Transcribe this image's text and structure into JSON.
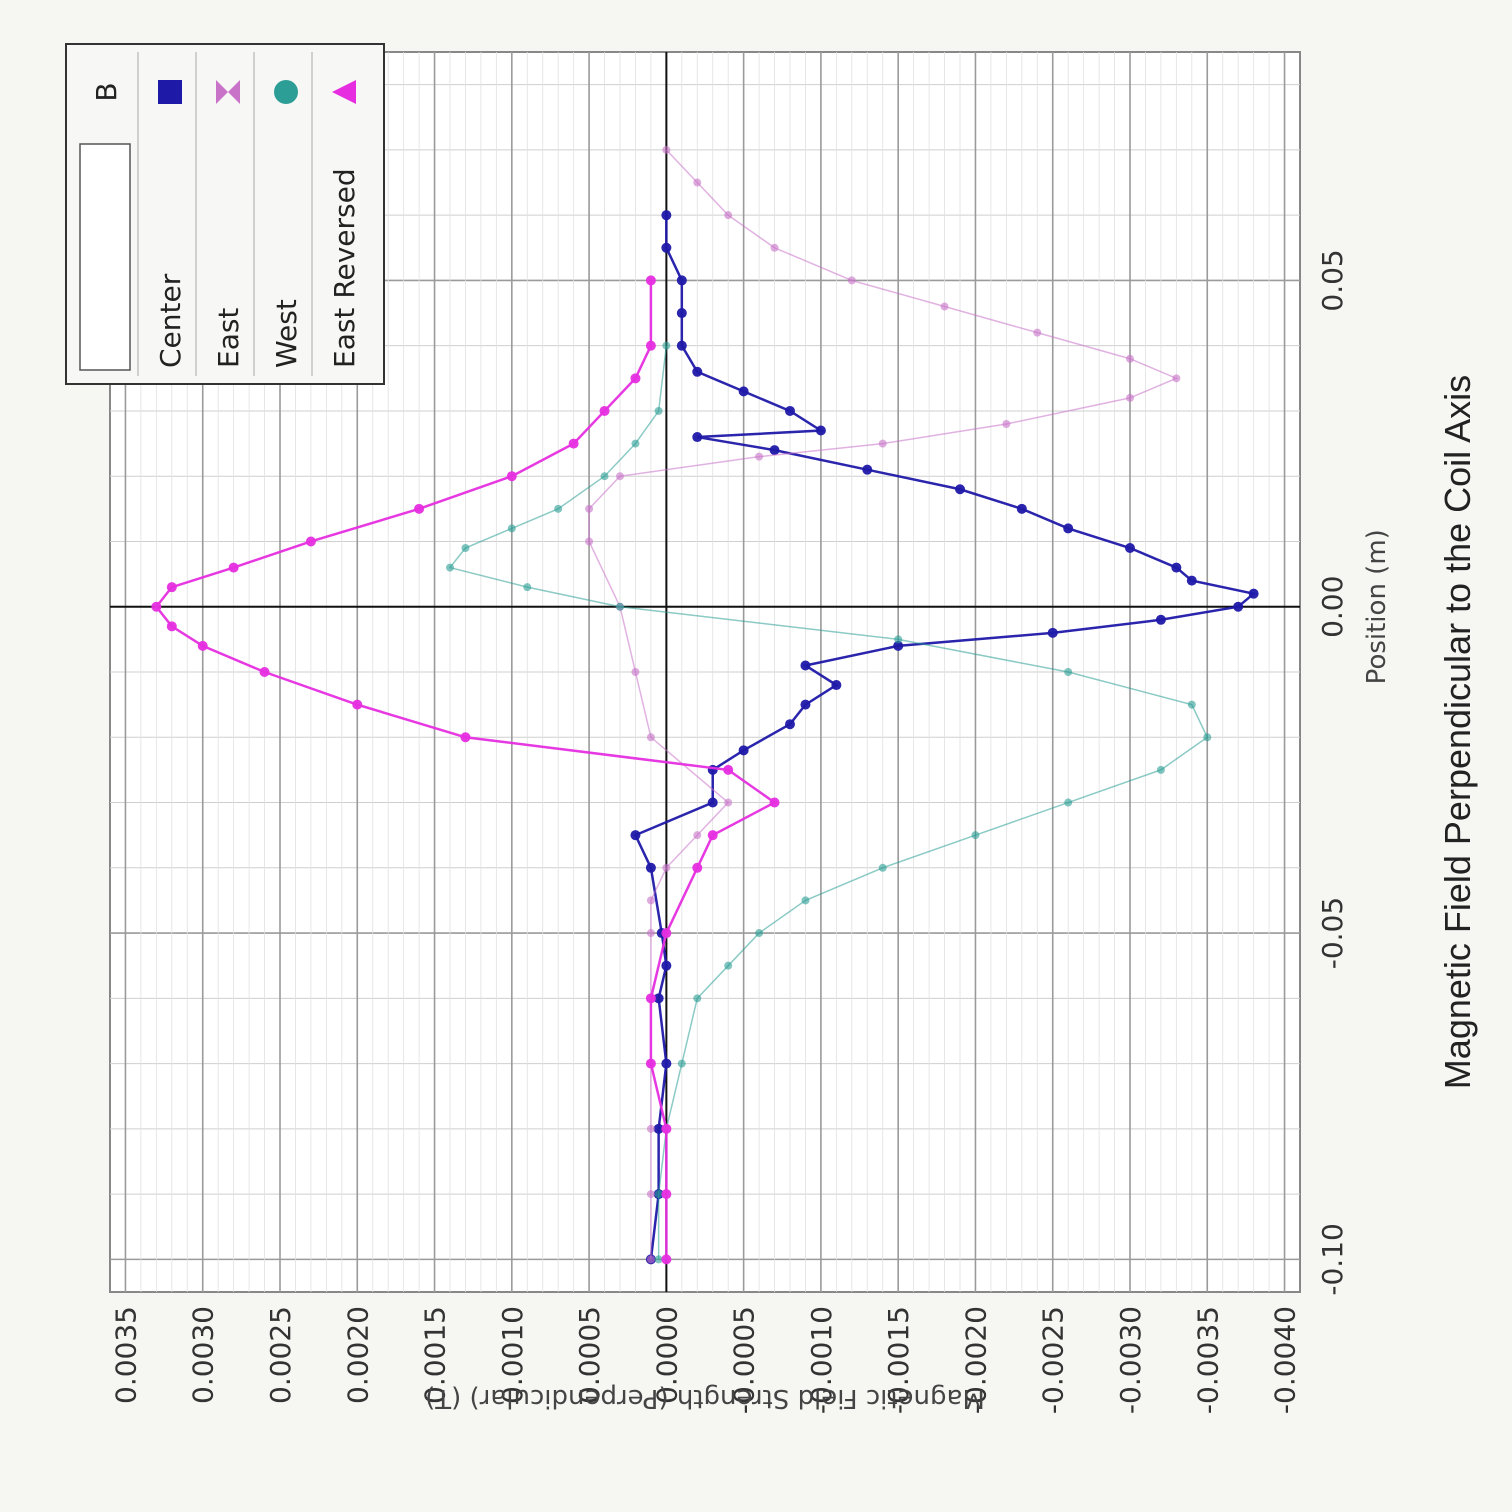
{
  "toolbar": {
    "icons": [
      "table-icon",
      "shapes-icon",
      "pen-icon",
      "sum-icon",
      "triangle-icon",
      "fit-icon",
      "crosshair-icon",
      "slope-icon",
      "area-icon",
      "integral-icon",
      "curve-fit-icon",
      "x-zoom-icon",
      "y-zoom-icon",
      "autoscale-icon",
      "delete-icon",
      "copy-icon",
      "settings-icon",
      "gear-icon"
    ]
  },
  "chart_data": {
    "type": "scatter",
    "title": "Magnetic Field Perpendicular to the Coil Axis",
    "xlabel": "Position (m)",
    "ylabel": "Magnetic Field Strength (Perpendicular) (T)",
    "xlim": [
      -0.105,
      0.085
    ],
    "ylim": [
      -0.0041,
      0.0036
    ],
    "xticks": [
      -0.1,
      -0.05,
      0.0,
      0.05
    ],
    "xtick_labels": [
      "-0.10",
      "-0.05",
      "0.00",
      "0.05"
    ],
    "yticks": [
      0.0035,
      0.003,
      0.0025,
      0.002,
      0.0015,
      0.001,
      0.0005,
      0.0,
      -0.0005,
      -0.001,
      -0.0015,
      -0.002,
      -0.0025,
      -0.003,
      -0.0035,
      -0.004
    ],
    "ytick_labels": [
      "0.0035",
      "0.0030",
      "0.0025",
      "0.0020",
      "0.0015",
      "0.0010",
      "0.0005",
      "0.0000",
      "-0.0005",
      "-0.0010",
      "-0.0015",
      "-0.0020",
      "-0.0025",
      "-0.0030",
      "-0.0035",
      "-0.0040"
    ],
    "grid": true,
    "legend_position": "top-right",
    "legend_header": "B",
    "series": [
      {
        "name": "Center",
        "color": "#1f19a8",
        "marker": "square",
        "points": [
          [
            -0.1,
            0.0001
          ],
          [
            -0.09,
            5e-05
          ],
          [
            -0.08,
            5e-05
          ],
          [
            -0.07,
            0.0
          ],
          [
            -0.06,
            5e-05
          ],
          [
            -0.055,
            0.0
          ],
          [
            -0.05,
            3e-05
          ],
          [
            -0.04,
            0.0001
          ],
          [
            -0.035,
            0.0002
          ],
          [
            -0.03,
            -0.0003
          ],
          [
            -0.025,
            -0.0003
          ],
          [
            -0.022,
            -0.0005
          ],
          [
            -0.018,
            -0.0008
          ],
          [
            -0.015,
            -0.0009
          ],
          [
            -0.012,
            -0.0011
          ],
          [
            -0.009,
            -0.0009
          ],
          [
            -0.006,
            -0.0015
          ],
          [
            -0.004,
            -0.0025
          ],
          [
            -0.002,
            -0.0032
          ],
          [
            0.0,
            -0.0037
          ],
          [
            0.002,
            -0.0038
          ],
          [
            0.004,
            -0.0034
          ],
          [
            0.006,
            -0.0033
          ],
          [
            0.009,
            -0.003
          ],
          [
            0.012,
            -0.0026
          ],
          [
            0.015,
            -0.0023
          ],
          [
            0.018,
            -0.0019
          ],
          [
            0.021,
            -0.0013
          ],
          [
            0.024,
            -0.0007
          ],
          [
            0.026,
            -0.0002
          ],
          [
            0.027,
            -0.001
          ],
          [
            0.03,
            -0.0008
          ],
          [
            0.033,
            -0.0005
          ],
          [
            0.036,
            -0.0002
          ],
          [
            0.04,
            -0.0001
          ],
          [
            0.045,
            -0.0001
          ],
          [
            0.05,
            -0.0001
          ],
          [
            0.055,
            0.0
          ],
          [
            0.06,
            0.0
          ]
        ]
      },
      {
        "name": "East",
        "color": "#c873c8",
        "marker": "bowtie",
        "points": [
          [
            -0.1,
            0.0001
          ],
          [
            -0.09,
            0.0001
          ],
          [
            -0.08,
            0.0001
          ],
          [
            -0.07,
            0.0001
          ],
          [
            -0.06,
            0.0001
          ],
          [
            -0.05,
            0.0001
          ],
          [
            -0.045,
            0.0001
          ],
          [
            -0.04,
            0.0
          ],
          [
            -0.035,
            -0.0002
          ],
          [
            -0.03,
            -0.0004
          ],
          [
            -0.02,
            0.0001
          ],
          [
            -0.01,
            0.0002
          ],
          [
            0.0,
            0.0003
          ],
          [
            0.01,
            0.0005
          ],
          [
            0.015,
            0.0005
          ],
          [
            0.02,
            0.0003
          ],
          [
            0.023,
            -0.0006
          ],
          [
            0.025,
            -0.0014
          ],
          [
            0.028,
            -0.0022
          ],
          [
            0.032,
            -0.003
          ],
          [
            0.035,
            -0.0033
          ],
          [
            0.038,
            -0.003
          ],
          [
            0.042,
            -0.0024
          ],
          [
            0.046,
            -0.0018
          ],
          [
            0.05,
            -0.0012
          ],
          [
            0.055,
            -0.0007
          ],
          [
            0.06,
            -0.0004
          ],
          [
            0.065,
            -0.0002
          ],
          [
            0.07,
            0.0
          ]
        ]
      },
      {
        "name": "West",
        "color": "#2c9e95",
        "marker": "circle",
        "points": [
          [
            -0.1,
            5e-05
          ],
          [
            -0.09,
            5e-05
          ],
          [
            -0.08,
            0.0
          ],
          [
            -0.07,
            -0.0001
          ],
          [
            -0.06,
            -0.0002
          ],
          [
            -0.055,
            -0.0004
          ],
          [
            -0.05,
            -0.0006
          ],
          [
            -0.045,
            -0.0009
          ],
          [
            -0.04,
            -0.0014
          ],
          [
            -0.035,
            -0.002
          ],
          [
            -0.03,
            -0.0026
          ],
          [
            -0.025,
            -0.0032
          ],
          [
            -0.02,
            -0.0035
          ],
          [
            -0.015,
            -0.0034
          ],
          [
            -0.01,
            -0.0026
          ],
          [
            -0.005,
            -0.0015
          ],
          [
            0.0,
            0.0003
          ],
          [
            0.003,
            0.0009
          ],
          [
            0.006,
            0.0014
          ],
          [
            0.009,
            0.0013
          ],
          [
            0.012,
            0.001
          ],
          [
            0.015,
            0.0007
          ],
          [
            0.02,
            0.0004
          ],
          [
            0.025,
            0.0002
          ],
          [
            0.03,
            5e-05
          ],
          [
            0.04,
            0.0
          ]
        ]
      },
      {
        "name": "East Reversed",
        "color": "#e62ee0",
        "marker": "triangle",
        "points": [
          [
            -0.1,
            0.0
          ],
          [
            -0.09,
            0.0
          ],
          [
            -0.08,
            0.0
          ],
          [
            -0.07,
            0.0001
          ],
          [
            -0.06,
            0.0001
          ],
          [
            -0.05,
            0.0
          ],
          [
            -0.04,
            -0.0002
          ],
          [
            -0.035,
            -0.0003
          ],
          [
            -0.03,
            -0.0007
          ],
          [
            -0.025,
            -0.0004
          ],
          [
            -0.02,
            0.0013
          ],
          [
            -0.015,
            0.002
          ],
          [
            -0.01,
            0.0026
          ],
          [
            -0.006,
            0.003
          ],
          [
            -0.003,
            0.0032
          ],
          [
            0.0,
            0.0033
          ],
          [
            0.003,
            0.0032
          ],
          [
            0.006,
            0.0028
          ],
          [
            0.01,
            0.0023
          ],
          [
            0.015,
            0.0016
          ],
          [
            0.02,
            0.001
          ],
          [
            0.025,
            0.0006
          ],
          [
            0.03,
            0.0004
          ],
          [
            0.035,
            0.0002
          ],
          [
            0.04,
            0.0001
          ],
          [
            0.05,
            0.0001
          ]
        ]
      }
    ]
  }
}
